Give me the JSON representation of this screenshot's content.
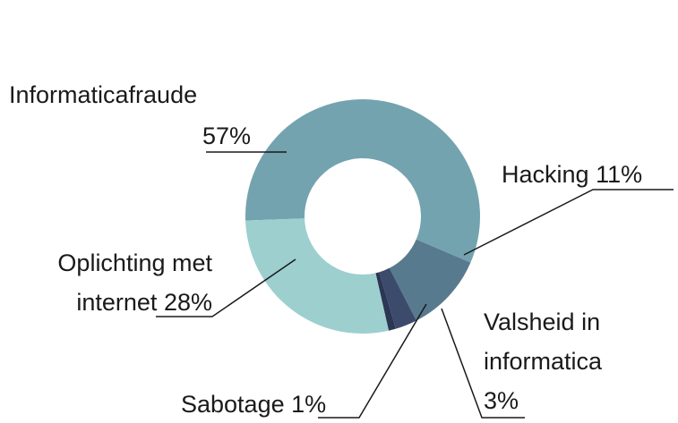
{
  "chart_data": {
    "type": "donut",
    "categories": [
      "Informaticafraude",
      "Hacking",
      "Valsheid in informatica",
      "Sabotage",
      "Oplichting met internet"
    ],
    "values": [
      57,
      11,
      3,
      1,
      28
    ],
    "value_labels": [
      "57%",
      "11%",
      "3%",
      "1%",
      "28%"
    ],
    "colors": [
      "#74a3b0",
      "#587a8e",
      "#3c4b6c",
      "#2c3753",
      "#9dcfcf"
    ]
  }
}
